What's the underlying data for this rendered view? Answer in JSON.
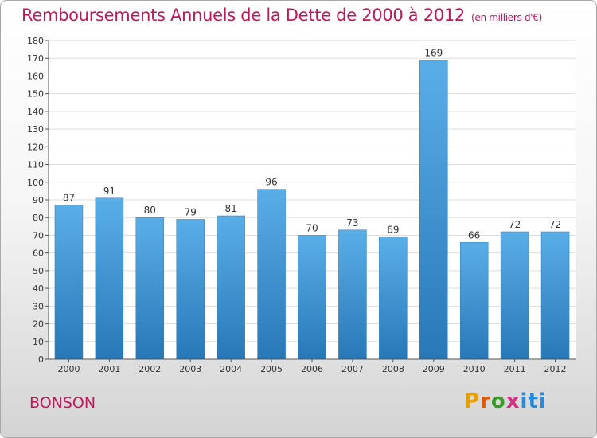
{
  "header": {
    "title": "Remboursements Annuels de la Dette de 2000 à 2012",
    "unit": "(en milliers d'€)"
  },
  "footer": {
    "commune": "BONSON",
    "brand": [
      "P",
      "r",
      "o",
      "x",
      "i",
      "t",
      "i"
    ],
    "brand_colors": [
      "#e8a000",
      "#e05a00",
      "#3a9a2a",
      "#d23080",
      "#2a8ad8",
      "#2a8ad8",
      "#2a8ad8"
    ]
  },
  "chart_data": {
    "type": "bar",
    "title": "Remboursements Annuels de la Dette de 2000 à 2012",
    "subtitle": "(en milliers d'€)",
    "categories": [
      "2000",
      "2001",
      "2002",
      "2003",
      "2004",
      "2005",
      "2006",
      "2007",
      "2008",
      "2009",
      "2010",
      "2011",
      "2012"
    ],
    "values": [
      87,
      91,
      80,
      79,
      81,
      96,
      70,
      73,
      69,
      169,
      66,
      72,
      72
    ],
    "ylim": [
      0,
      180
    ],
    "yticks": [
      0,
      10,
      20,
      30,
      40,
      50,
      60,
      70,
      80,
      90,
      100,
      110,
      120,
      130,
      140,
      150,
      160,
      170,
      180
    ],
    "grid": true,
    "bar_color_top": "#5aaee8",
    "bar_color_bottom": "#2878b8"
  }
}
